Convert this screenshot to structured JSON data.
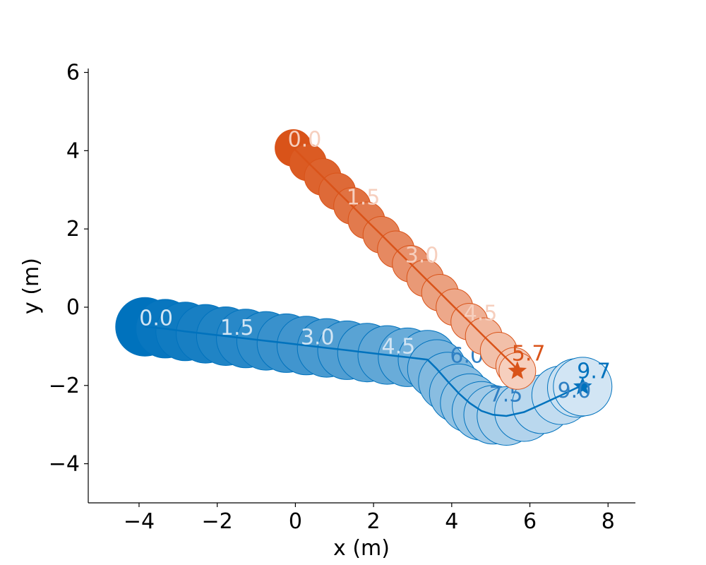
{
  "chart_data": {
    "type": "scatter",
    "xlabel": "x (m)",
    "ylabel": "y (m)",
    "xlim": [
      -5.3,
      8.7
    ],
    "ylim": [
      -5.0,
      6.1
    ],
    "xticks": [
      -4,
      -2,
      0,
      2,
      4,
      6,
      8
    ],
    "xtick_labels": [
      "−4",
      "−2",
      "0",
      "2",
      "4",
      "6",
      "8"
    ],
    "yticks": [
      -4,
      -2,
      0,
      2,
      4,
      6
    ],
    "ytick_labels": [
      "−4",
      "−2",
      "0",
      "2",
      "4",
      "6"
    ],
    "grid": false,
    "series": [
      {
        "color": "#0072BD",
        "color_dark": "#0072BD",
        "color_light": "#D2E5F4",
        "label_color_early": "#D2E5F4",
        "label_color_late": "#2F80C4",
        "final_label_color": "#0072BD",
        "circle_radius_m": 0.75,
        "points": [
          [
            -3.85,
            -0.5
          ],
          [
            -3.33,
            -0.55
          ],
          [
            -2.82,
            -0.62
          ],
          [
            -2.3,
            -0.68
          ],
          [
            -1.78,
            -0.74
          ],
          [
            -1.27,
            -0.8
          ],
          [
            -0.75,
            -0.86
          ],
          [
            -0.23,
            -0.92
          ],
          [
            0.28,
            -0.98
          ],
          [
            0.8,
            -1.04
          ],
          [
            1.32,
            -1.1
          ],
          [
            1.83,
            -1.16
          ],
          [
            2.35,
            -1.22
          ],
          [
            2.87,
            -1.28
          ],
          [
            3.38,
            -1.34
          ],
          [
            3.62,
            -1.58
          ],
          [
            3.9,
            -1.9
          ],
          [
            4.18,
            -2.2
          ],
          [
            4.46,
            -2.45
          ],
          [
            4.76,
            -2.65
          ],
          [
            5.06,
            -2.75
          ],
          [
            5.4,
            -2.78
          ],
          [
            5.85,
            -2.68
          ],
          [
            6.3,
            -2.48
          ],
          [
            6.8,
            -2.25
          ],
          [
            7.2,
            -2.06
          ],
          [
            7.35,
            -2.03
          ]
        ],
        "time_labels": [
          {
            "text": "0.0",
            "x": -3.85,
            "y": -0.5,
            "phase": "early"
          },
          {
            "text": "1.5",
            "x": -1.78,
            "y": -0.74,
            "phase": "early"
          },
          {
            "text": "3.0",
            "x": 0.28,
            "y": -0.98,
            "phase": "early"
          },
          {
            "text": "4.5",
            "x": 2.35,
            "y": -1.22,
            "phase": "early"
          },
          {
            "text": "6.0",
            "x": 4.1,
            "y": -1.45,
            "phase": "late"
          },
          {
            "text": "7.5",
            "x": 5.1,
            "y": -2.45,
            "phase": "late"
          },
          {
            "text": "9.0",
            "x": 6.85,
            "y": -2.35,
            "phase": "late"
          },
          {
            "text": "9.7",
            "x": 7.35,
            "y": -1.85,
            "phase": "final"
          }
        ],
        "goal": [
          7.35,
          -2.03
        ]
      },
      {
        "color": "#D95319",
        "color_dark": "#D95319",
        "color_light": "#F6CFBE",
        "label_color_early": "#F6CFBE",
        "label_color_late": "#F6CFBE",
        "final_label_color": "#D95319",
        "circle_radius_m": 0.47,
        "points": [
          [
            -0.05,
            4.07
          ],
          [
            0.32,
            3.7
          ],
          [
            0.7,
            3.33
          ],
          [
            1.07,
            2.96
          ],
          [
            1.45,
            2.59
          ],
          [
            1.82,
            2.22
          ],
          [
            2.2,
            1.85
          ],
          [
            2.57,
            1.48
          ],
          [
            2.95,
            1.11
          ],
          [
            3.32,
            0.74
          ],
          [
            3.7,
            0.37
          ],
          [
            4.07,
            0.0
          ],
          [
            4.45,
            -0.37
          ],
          [
            4.82,
            -0.74
          ],
          [
            5.2,
            -1.11
          ],
          [
            5.6,
            -1.5
          ],
          [
            5.68,
            -1.63
          ]
        ],
        "time_labels": [
          {
            "text": "0.0",
            "x": -0.05,
            "y": 4.07,
            "phase": "early"
          },
          {
            "text": "1.5",
            "x": 1.45,
            "y": 2.59,
            "phase": "early"
          },
          {
            "text": "3.0",
            "x": 2.95,
            "y": 1.11,
            "phase": "early"
          },
          {
            "text": "4.5",
            "x": 4.45,
            "y": -0.37,
            "phase": "early"
          },
          {
            "text": "5.7",
            "x": 5.68,
            "y": -1.4,
            "phase": "final"
          }
        ],
        "goal": [
          5.68,
          -1.63
        ]
      }
    ]
  }
}
